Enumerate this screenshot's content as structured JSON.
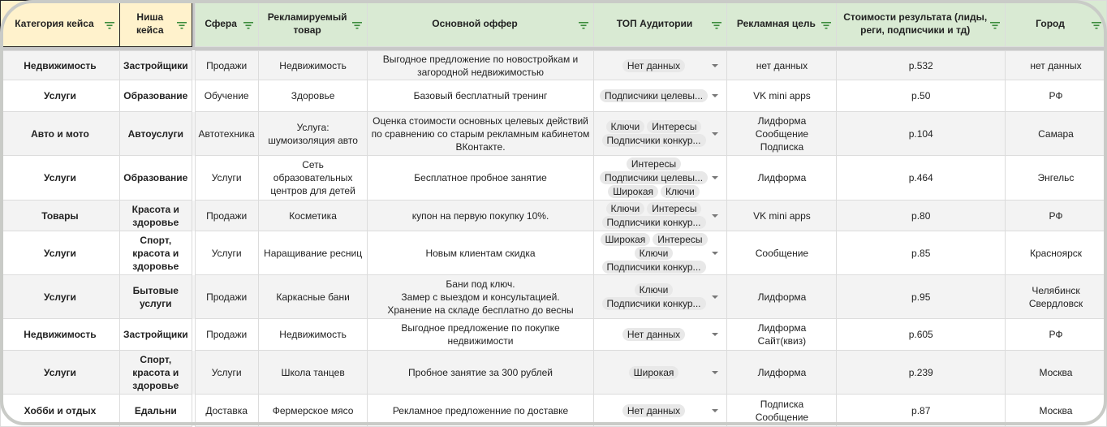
{
  "colors": {
    "header_green": "#d9ead3",
    "header_yellow": "#fff2cc",
    "filter_icon": "#3c8c3c"
  },
  "columns": [
    "Категория кейса",
    "Ниша кейса",
    "Сфера",
    "Рекламируемый товар",
    "Основной оффер",
    "ТОП Аудитории",
    "Рекламная цель",
    "Стоимости результата (лиды, реги, подписчики и тд)",
    "Город"
  ],
  "rows": [
    {
      "category": "Недвижимость",
      "niche": "Застройщики",
      "sphere": "Продажи",
      "product": "Недвижимость",
      "offer": "Выгодное предложение по  новостройкам  и загородной недвижимостью",
      "audiences": [
        "Нет данных"
      ],
      "goal": "нет данных",
      "cost": "р.532",
      "city": "нет данных"
    },
    {
      "category": "Услуги",
      "niche": "Образование",
      "sphere": "Обучение",
      "product": "Здоровье",
      "offer": "Базовый бесплатный тренинг",
      "audiences": [
        "Подписчики целевы..."
      ],
      "goal": "VK mini apps",
      "cost": "р.50",
      "city": "РФ"
    },
    {
      "category": "Авто и мото",
      "niche": "Автоуслуги",
      "sphere": "Автотехника",
      "product": "Услуга: шумоизоляция авто",
      "offer": "Оценка стоимости основных целевых действий по сравнению со старым рекламным кабинетом ВКонтакте.",
      "audiences": [
        "Ключи",
        "Интересы",
        "Подписчики конкур..."
      ],
      "goal": "Лидформа\nСообщение\nПодписка",
      "cost": "р.104",
      "city": "Самара"
    },
    {
      "category": "Услуги",
      "niche": "Образование",
      "sphere": "Услуги",
      "product": "Сеть образовательных центров для детей",
      "offer": "Бесплатное пробное занятие",
      "audiences": [
        "Интересы",
        "Подписчики целевы...",
        "Широкая",
        "Ключи"
      ],
      "goal": "Лидформа",
      "cost": "р.464",
      "city": "Энгельс"
    },
    {
      "category": "Товары",
      "niche": "Красота и здоровье",
      "sphere": "Продажи",
      "product": "Косметика",
      "offer": "купон на первую покупку 10%.",
      "audiences": [
        "Ключи",
        "Интересы",
        "Подписчики конкур..."
      ],
      "goal": "VK mini apps",
      "cost": "р.80",
      "city": "РФ"
    },
    {
      "category": "Услуги",
      "niche": "Спорт, красота и здоровье",
      "sphere": "Услуги",
      "product": "Наращивание ресниц",
      "offer": "Новым клиентам скидка",
      "audiences": [
        "Широкая",
        "Интересы",
        "Ключи",
        "Подписчики конкур..."
      ],
      "goal": "Сообщение",
      "cost": "р.85",
      "city": "Красноярск"
    },
    {
      "category": "Услуги",
      "niche": "Бытовые услуги",
      "sphere": "Продажи",
      "product": "Каркасные бани",
      "offer": "Бани под ключ.\nЗамер с выездом и консультацией.\nХранение на складе бесплатно до весны",
      "audiences": [
        "Ключи",
        "Подписчики конкур..."
      ],
      "goal": "Лидформа",
      "cost": "р.95",
      "city": "Челябинск\nСвердловск"
    },
    {
      "category": "Недвижимость",
      "niche": "Застройщики",
      "sphere": "Продажи",
      "product": "Недвижимость",
      "offer": "Выгодное предложение по  покупке недвижимости",
      "audiences": [
        "Нет данных"
      ],
      "goal": "Лидформа\nСайт(квиз)",
      "cost": "р.605",
      "city": "РФ"
    },
    {
      "category": "Услуги",
      "niche": "Спорт, красота и здоровье",
      "sphere": "Услуги",
      "product": "Школа танцев",
      "offer": "Пробное занятие за 300 рублей",
      "audiences": [
        "Широкая"
      ],
      "goal": "Лидформа",
      "cost": "р.239",
      "city": "Москва"
    },
    {
      "category": "Хобби и отдых",
      "niche": "Едальни",
      "sphere": "Доставка",
      "product": "Фермерское мясо",
      "offer": "Рекламное предложенние по доставке",
      "audiences": [
        "Нет данных"
      ],
      "goal": "Подписка\nСообщение",
      "cost": "р.87",
      "city": "Москва"
    }
  ]
}
